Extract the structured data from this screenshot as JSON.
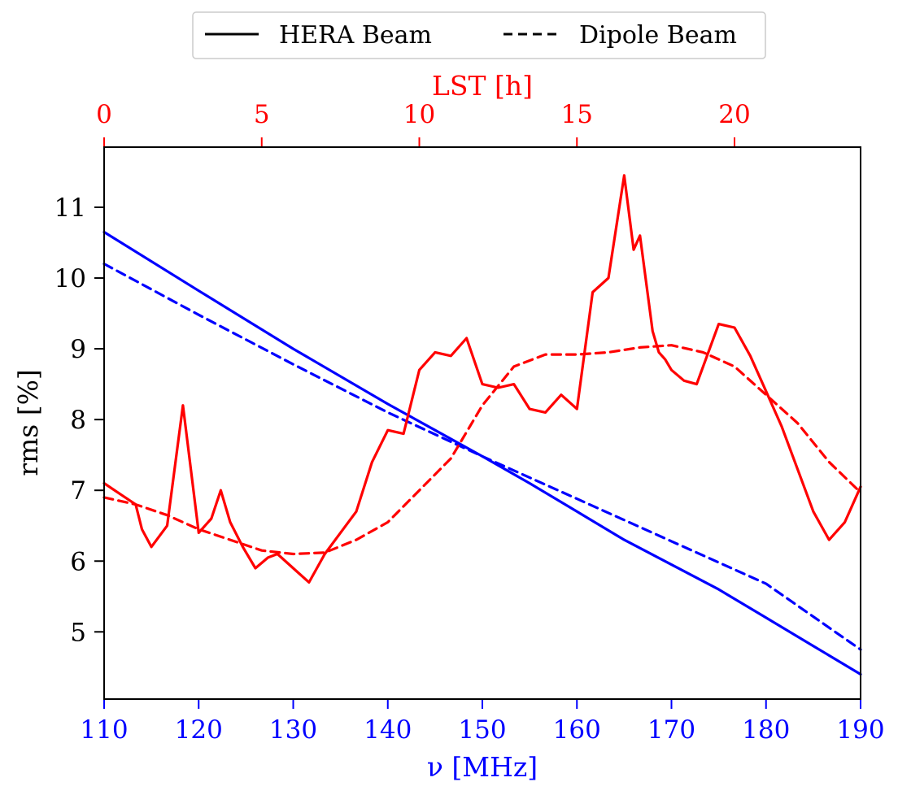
{
  "chart_data": {
    "type": "line",
    "legend": {
      "placement": "top-center-outside",
      "entries": [
        {
          "label": "HERA Beam",
          "style": "solid"
        },
        {
          "label": "Dipole Beam",
          "style": "dashed"
        }
      ]
    },
    "xlabel": "ν [MHz]",
    "x_axis_color": "#0000ff",
    "xlim": [
      110,
      190
    ],
    "xticks": [
      110,
      120,
      130,
      140,
      150,
      160,
      170,
      180,
      190
    ],
    "top_xlabel": "LST [h]",
    "top_axis_color": "#ff0000",
    "top_xlim": [
      0,
      24
    ],
    "top_xticks": [
      0,
      5,
      10,
      15,
      20
    ],
    "ylabel": "rms [%]",
    "ylim": [
      4.05,
      11.85
    ],
    "yticks": [
      5,
      6,
      7,
      8,
      9,
      10,
      11
    ],
    "series": [
      {
        "name": "HERA Beam (frequency)",
        "axis": "bottom",
        "color": "#0000ff",
        "style": "solid",
        "x": [
          110,
          120,
          130,
          140,
          145,
          150,
          155,
          160,
          165,
          170,
          175,
          180,
          185,
          190
        ],
        "y": [
          10.65,
          9.82,
          9.0,
          8.22,
          7.85,
          7.48,
          7.1,
          6.7,
          6.3,
          5.95,
          5.6,
          5.2,
          4.8,
          4.4
        ]
      },
      {
        "name": "Dipole Beam (frequency)",
        "axis": "bottom",
        "color": "#0000ff",
        "style": "dashed",
        "x": [
          110,
          120,
          130,
          140,
          150,
          160,
          170,
          180,
          190
        ],
        "y": [
          10.2,
          9.48,
          8.78,
          8.1,
          7.48,
          6.88,
          6.28,
          5.68,
          4.75
        ]
      },
      {
        "name": "HERA Beam (LST)",
        "axis": "top",
        "color": "#ff0000",
        "style": "solid",
        "x": [
          0,
          0.5,
          1.0,
          1.2,
          1.5,
          2.0,
          2.5,
          3.0,
          3.4,
          3.7,
          4.0,
          4.4,
          4.8,
          5.2,
          5.5,
          6.0,
          6.5,
          7.0,
          7.5,
          8.0,
          8.5,
          9.0,
          9.5,
          10.0,
          10.5,
          11.0,
          11.5,
          12.0,
          12.5,
          13.0,
          13.5,
          14.0,
          14.5,
          15.0,
          15.5,
          16.0,
          16.5,
          16.8,
          17.0,
          17.4,
          17.6,
          17.8,
          18.0,
          18.4,
          18.8,
          19.5,
          20.0,
          20.5,
          21.0,
          21.5,
          22.0,
          22.5,
          23.0,
          23.5,
          24.0
        ],
        "y": [
          7.1,
          6.95,
          6.8,
          6.45,
          6.2,
          6.5,
          8.2,
          6.4,
          6.6,
          7.0,
          6.55,
          6.2,
          5.9,
          6.05,
          6.1,
          5.9,
          5.7,
          6.1,
          6.4,
          6.7,
          7.4,
          7.85,
          7.8,
          8.7,
          8.95,
          8.9,
          9.15,
          8.5,
          8.45,
          8.5,
          8.15,
          8.1,
          8.35,
          8.15,
          9.8,
          10.0,
          11.45,
          10.4,
          10.6,
          9.25,
          8.95,
          8.85,
          8.7,
          8.55,
          8.5,
          9.35,
          9.3,
          8.9,
          8.4,
          7.9,
          7.3,
          6.7,
          6.3,
          6.55,
          7.05
        ]
      },
      {
        "name": "Dipole Beam (LST)",
        "axis": "top",
        "color": "#ff0000",
        "style": "dashed",
        "x": [
          0,
          1.0,
          2.0,
          3.0,
          4.0,
          5.0,
          6.0,
          7.0,
          8.0,
          9.0,
          10.0,
          11.0,
          12.0,
          13.0,
          14.0,
          15.0,
          16.0,
          17.0,
          18.0,
          19.0,
          20.0,
          21.0,
          22.0,
          23.0,
          24.0
        ],
        "y": [
          6.9,
          6.8,
          6.65,
          6.45,
          6.3,
          6.15,
          6.1,
          6.12,
          6.3,
          6.55,
          7.0,
          7.45,
          8.2,
          8.75,
          8.92,
          8.92,
          8.95,
          9.02,
          9.05,
          8.95,
          8.75,
          8.35,
          7.95,
          7.4,
          6.97
        ]
      }
    ]
  }
}
